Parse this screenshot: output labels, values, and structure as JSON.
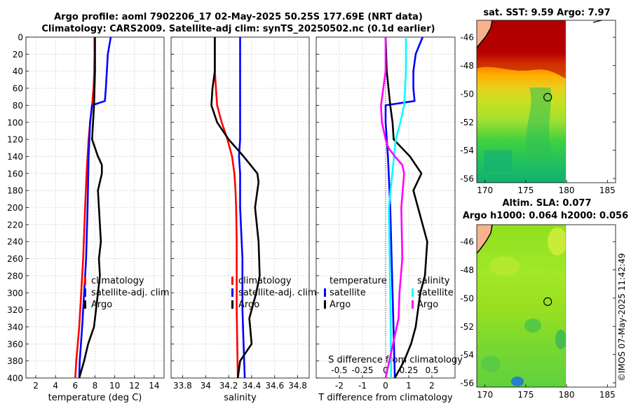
{
  "header": {
    "line1": "Argo profile: aoml 7902206_17 02-May-2025 50.25S 177.69E (NRT data)",
    "line2": "Climatology: CARS2009. Satellite-adj clim: synTS_20250502.nc (0.1d earlier)"
  },
  "timestamp": "©IMOS 07-May-2025 11:42:49",
  "colors": {
    "argo": "#000000",
    "climatology": "#ff0000",
    "satellite": "#0000ff",
    "sal_satellite": "#00ffff",
    "sal_argo": "#ff00ff",
    "grid": "#b0b0b0"
  },
  "depth_axis": {
    "ticks": [
      0,
      20,
      40,
      60,
      80,
      100,
      120,
      140,
      160,
      180,
      200,
      220,
      240,
      260,
      280,
      300,
      320,
      340,
      360,
      380,
      400
    ],
    "range": [
      0,
      400
    ]
  },
  "chart_data": [
    {
      "id": "temperature",
      "type": "line",
      "xlabel": "temperature (deg C)",
      "xlim": [
        1,
        15
      ],
      "xticks": [
        2,
        4,
        6,
        8,
        10,
        12,
        14
      ],
      "xtick_labels": [
        "2",
        "4",
        "6",
        "8",
        "10",
        "12",
        "14"
      ],
      "legend": [
        "climatology",
        "satellite-adj. clim",
        "Argo"
      ],
      "series": [
        {
          "name": "climatology",
          "color": "#ff0000",
          "depth": [
            0,
            20,
            40,
            60,
            80,
            100,
            120,
            140,
            160,
            200,
            260,
            300,
            340,
            380,
            400
          ],
          "values": [
            7.95,
            7.95,
            7.92,
            7.85,
            7.7,
            7.5,
            7.35,
            7.25,
            7.15,
            7.0,
            6.8,
            6.6,
            6.4,
            6.1,
            6.0
          ]
        },
        {
          "name": "satellite-adj. clim",
          "color": "#0000ff",
          "depth": [
            0,
            20,
            40,
            60,
            75,
            80,
            100,
            140,
            200,
            260,
            300,
            340,
            380,
            400
          ],
          "values": [
            9.6,
            9.3,
            9.2,
            9.1,
            9.0,
            7.7,
            7.5,
            7.35,
            7.25,
            7.1,
            6.9,
            6.7,
            6.45,
            6.4
          ]
        },
        {
          "name": "Argo",
          "color": "#000000",
          "depth": [
            0,
            20,
            40,
            60,
            80,
            100,
            120,
            140,
            150,
            160,
            180,
            200,
            220,
            240,
            260,
            280,
            300,
            320,
            340,
            360,
            380,
            400
          ],
          "values": [
            8.0,
            8.0,
            8.0,
            7.95,
            7.9,
            7.8,
            7.7,
            8.3,
            8.7,
            8.7,
            8.3,
            8.4,
            8.5,
            8.6,
            8.4,
            8.5,
            8.3,
            8.1,
            7.9,
            7.3,
            6.9,
            6.4
          ]
        }
      ]
    },
    {
      "id": "salinity",
      "type": "line",
      "xlabel": "salinity",
      "xlim": [
        33.7,
        34.9
      ],
      "xticks": [
        33.8,
        34.0,
        34.2,
        34.4,
        34.6,
        34.8
      ],
      "xtick_labels": [
        "33.8",
        "34",
        "34.2",
        "34.4",
        "34.6",
        "34.8"
      ],
      "legend": [
        "climatology",
        "satellite-adj. clim",
        "Argo"
      ],
      "series": [
        {
          "name": "climatology",
          "color": "#ff0000",
          "depth": [
            0,
            40,
            60,
            80,
            100,
            120,
            140,
            160,
            180,
            200,
            240,
            280,
            320,
            360,
            400
          ],
          "values": [
            34.08,
            34.08,
            34.09,
            34.1,
            34.14,
            34.19,
            34.23,
            34.25,
            34.26,
            34.265,
            34.27,
            34.27,
            34.27,
            34.275,
            34.28
          ]
        },
        {
          "name": "satellite-adj. clim",
          "color": "#0000ff",
          "depth": [
            0,
            40,
            80,
            120,
            140,
            160,
            200,
            260,
            320,
            360,
            400
          ],
          "values": [
            34.3,
            34.3,
            34.3,
            34.3,
            34.29,
            34.3,
            34.3,
            34.32,
            34.32,
            34.33,
            34.34
          ]
        },
        {
          "name": "Argo",
          "color": "#000000",
          "depth": [
            0,
            40,
            60,
            80,
            100,
            120,
            140,
            160,
            170,
            200,
            240,
            280,
            300,
            330,
            360,
            380,
            400
          ],
          "values": [
            34.08,
            34.08,
            34.06,
            34.05,
            34.1,
            34.2,
            34.33,
            34.45,
            34.46,
            34.43,
            34.46,
            34.47,
            34.44,
            34.38,
            34.4,
            34.3,
            34.28
          ]
        }
      ]
    },
    {
      "id": "differences",
      "type": "line",
      "xlabel": "T difference from climatology",
      "xlim": [
        -3,
        3
      ],
      "xticks": [
        -2,
        -1,
        0,
        1,
        2
      ],
      "xtick_labels": [
        "-2",
        "-1",
        "0",
        "1",
        "2"
      ],
      "secondary_xlabel": "S difference from climatology",
      "secondary_xtick_labels": [
        "-0.5",
        "-0.25",
        "0",
        "0.25",
        "0.5"
      ],
      "secondary_xticks": [
        -0.5,
        -0.25,
        0,
        0.25,
        0.5
      ],
      "secondary_xlim": [
        -0.75,
        0.75
      ],
      "legend_temperature": [
        "temperature",
        "satellite",
        "Argo"
      ],
      "legend_salinity": [
        "salinity",
        "satellite",
        "Argo"
      ],
      "series": [
        {
          "name": "temperature satellite",
          "color": "#0000ff",
          "axis": "T",
          "depth": [
            0,
            20,
            40,
            60,
            75,
            80,
            100,
            140,
            200,
            300,
            400
          ],
          "values": [
            1.6,
            1.3,
            1.2,
            1.2,
            1.25,
            0.0,
            0.0,
            0.1,
            0.2,
            0.3,
            0.4
          ]
        },
        {
          "name": "temperature Argo",
          "color": "#000000",
          "axis": "T",
          "depth": [
            0,
            40,
            80,
            100,
            120,
            140,
            160,
            180,
            200,
            240,
            280,
            300,
            340,
            360,
            380,
            400
          ],
          "values": [
            0.0,
            0.05,
            0.2,
            0.3,
            0.35,
            1.05,
            1.55,
            1.2,
            1.4,
            1.8,
            1.7,
            1.5,
            1.3,
            1.1,
            0.8,
            0.4
          ]
        },
        {
          "name": "salinity satellite",
          "color": "#00ffff",
          "axis": "S",
          "depth": [
            0,
            40,
            80,
            100,
            120,
            200,
            300,
            400
          ],
          "values": [
            0.22,
            0.22,
            0.2,
            0.16,
            0.11,
            0.035,
            0.05,
            0.06
          ]
        },
        {
          "name": "salinity Argo",
          "color": "#ff00ff",
          "axis": "S",
          "depth": [
            0,
            40,
            80,
            100,
            120,
            130,
            140,
            150,
            160,
            200,
            260,
            300,
            330,
            360,
            400
          ],
          "values": [
            0.0,
            0.0,
            -0.05,
            -0.04,
            0.0,
            0.03,
            0.1,
            0.18,
            0.2,
            0.17,
            0.18,
            0.15,
            0.14,
            0.08,
            0.0
          ]
        }
      ]
    }
  ],
  "maps": [
    {
      "id": "sst-map",
      "title": "sat. SST: 9.59 Argo: 7.97",
      "lon_range": [
        169,
        186
      ],
      "lat_range": [
        -56.3,
        -44.8
      ],
      "xticks": [
        170,
        175,
        180,
        185
      ],
      "yticks": [
        -46,
        -48,
        -50,
        -52,
        -54,
        -56
      ],
      "xtick_labels": [
        "170",
        "175",
        "180",
        "185"
      ],
      "ytick_labels": [
        "-46",
        "-48",
        "-50",
        "-52",
        "-54",
        "-56"
      ],
      "argo_position": {
        "lon": 177.69,
        "lat": -50.25
      }
    },
    {
      "id": "sla-map",
      "title_line1": "Altim. SLA: 0.077",
      "title_line2": "Argo h1000: 0.064 h2000: 0.056",
      "lon_range": [
        169,
        186
      ],
      "lat_range": [
        -56.3,
        -44.8
      ],
      "xticks": [
        170,
        175,
        180,
        185
      ],
      "yticks": [
        -46,
        -48,
        -50,
        -52,
        -54,
        -56
      ],
      "xtick_labels": [
        "170",
        "175",
        "180",
        "185"
      ],
      "ytick_labels": [
        "-46",
        "-48",
        "-50",
        "-52",
        "-54",
        "-56"
      ],
      "argo_position": {
        "lon": 177.69,
        "lat": -50.25
      }
    }
  ]
}
